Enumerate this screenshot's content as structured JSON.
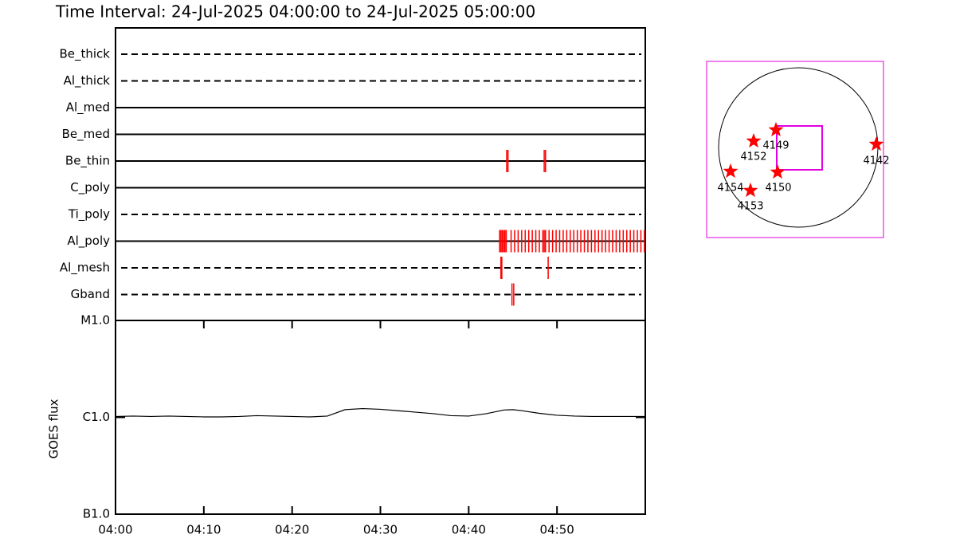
{
  "chart_data": [
    {
      "type": "timeline",
      "title": "Time Interval: 24-Jul-2025 04:00:00 to 24-Jul-2025 05:00:00",
      "categories": [
        "Be_thick",
        "Al_thick",
        "Al_med",
        "Be_med",
        "Be_thin",
        "C_poly",
        "Ti_poly",
        "Al_poly",
        "Al_mesh",
        "Gband"
      ],
      "line_styles": [
        "dashed",
        "dashed",
        "solid",
        "solid",
        "solid",
        "solid",
        "dashed",
        "solid",
        "dashed",
        "dashed"
      ],
      "color": "#ff0000",
      "events": [
        [],
        [],
        [],
        [],
        [
          44.3,
          44.45,
          48.55,
          48.7
        ],
        [],
        [],
        [
          43.5,
          43.65,
          43.8,
          43.95,
          44.1,
          44.25,
          44.8,
          45.2,
          45.6,
          46.0,
          46.4,
          46.8,
          47.2,
          47.6,
          48.0,
          48.4,
          48.55,
          48.7,
          49.1,
          49.5,
          49.9,
          50.3,
          50.7,
          51.1,
          51.5,
          51.9,
          52.3,
          52.7,
          53.1,
          53.5,
          53.9,
          54.3,
          54.7,
          55.1,
          55.5,
          55.9,
          56.3,
          56.7,
          57.1,
          57.5,
          57.9,
          58.3,
          58.7,
          59.1,
          59.5,
          59.9
        ],
        [
          43.65,
          43.75,
          49.0
        ],
        [
          44.9,
          45.1
        ]
      ],
      "xlim": [
        0,
        60
      ]
    },
    {
      "type": "line",
      "ylabel": "GOES flux",
      "log_scale": true,
      "color": "#000000",
      "x": [
        0,
        2,
        4,
        6,
        8,
        10,
        12,
        14,
        16,
        18,
        20,
        22,
        24,
        26,
        28,
        30,
        32,
        34,
        36,
        38,
        40,
        42,
        44,
        45,
        46,
        48,
        50,
        52,
        54,
        56,
        58,
        60
      ],
      "values": [
        1.02e-06,
        1.03e-06,
        1.02e-06,
        1.03e-06,
        1.02e-06,
        1.01e-06,
        1.01e-06,
        1.02e-06,
        1.04e-06,
        1.03e-06,
        1.02e-06,
        1.01e-06,
        1.03e-06,
        1.2e-06,
        1.23e-06,
        1.21e-06,
        1.17e-06,
        1.13e-06,
        1.09e-06,
        1.04e-06,
        1.03e-06,
        1.09e-06,
        1.19e-06,
        1.2e-06,
        1.17e-06,
        1.1e-06,
        1.05e-06,
        1.03e-06,
        1.02e-06,
        1.02e-06,
        1.02e-06,
        1.02e-06
      ],
      "xlim": [
        0,
        60
      ],
      "xticks": [
        {
          "value": 0,
          "label": "04:00"
        },
        {
          "value": 10,
          "label": "04:10"
        },
        {
          "value": 20,
          "label": "04:20"
        },
        {
          "value": 30,
          "label": "04:30"
        },
        {
          "value": 40,
          "label": "04:40"
        },
        {
          "value": 50,
          "label": "04:50"
        }
      ],
      "ylim": [
        1e-07,
        1e-05
      ],
      "yticks": [
        {
          "value": 1e-07,
          "label": "B1.0"
        },
        {
          "value": 1e-06,
          "label": "C1.0"
        },
        {
          "value": 1e-05,
          "label": "M1.0"
        }
      ]
    }
  ],
  "map": {
    "regions": [
      "4149",
      "4152",
      "4142",
      "4154",
      "4150",
      "4153"
    ]
  }
}
